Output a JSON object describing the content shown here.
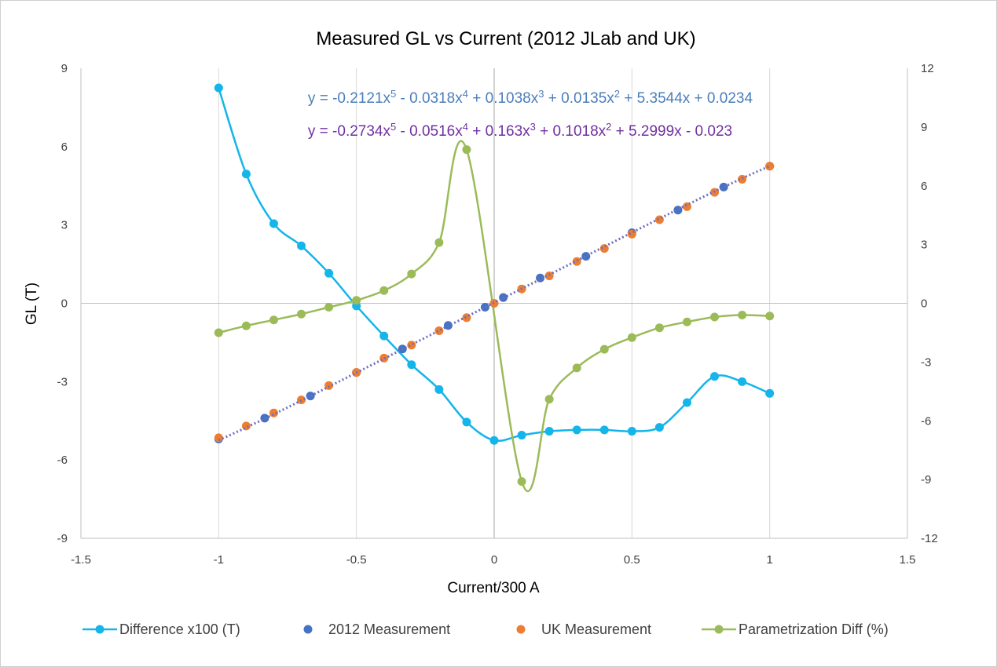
{
  "chart_data": {
    "type": "scatter",
    "title": "Measured GL vs Current (2012 JLab  and UK)",
    "xlabel": "Current/300 A",
    "ylabel": "GL (T)",
    "xlim": [
      -1.5,
      1.5
    ],
    "ylim": [
      -9,
      9
    ],
    "y2lim": [
      -12,
      12
    ],
    "xticks": [
      "-1.5",
      "-1",
      "-0.5",
      "0",
      "0.5",
      "1",
      "1.5"
    ],
    "yticks": [
      "-9",
      "-6",
      "-3",
      "0",
      "3",
      "6",
      "9"
    ],
    "y2ticks": [
      "-12",
      "-9",
      "-6",
      "-3",
      "0",
      "3",
      "6",
      "9",
      "12"
    ],
    "grid": "vertical-major",
    "legend_position": "bottom",
    "equations": [
      {
        "parts": [
          "y = -0.2121x",
          "5",
          " - 0.0318x",
          "4",
          " + 0.1038x",
          "3",
          " + 0.0135x",
          "2",
          " + 5.3544x + 0.0234"
        ],
        "color": "#4a7ebb"
      },
      {
        "parts": [
          "y = -0.2734x",
          "5",
          " - 0.0516x",
          "4",
          " + 0.163x",
          "3",
          " + 0.1018x",
          "2",
          " + 5.2999x - 0.023"
        ],
        "color": "#7030a0"
      }
    ],
    "series": [
      {
        "name": "Difference x100 (T)",
        "axis": "left",
        "style": "smooth-line-markers",
        "color": "#13b5ea",
        "x": [
          -1,
          -0.9,
          -0.8,
          -0.7,
          -0.6,
          -0.5,
          -0.4,
          -0.3,
          -0.2,
          -0.1,
          0,
          0.1,
          0.2,
          0.3,
          0.4,
          0.5,
          0.6,
          0.7,
          0.8,
          0.9,
          1
        ],
        "y": [
          8.25,
          4.95,
          3.05,
          2.2,
          1.15,
          -0.1,
          -1.25,
          -2.35,
          -3.3,
          -4.55,
          -5.25,
          -5.05,
          -4.9,
          -4.85,
          -4.85,
          -4.9,
          -4.75,
          -3.8,
          -2.8,
          -3.0,
          -3.45
        ]
      },
      {
        "name": "2012 Measurement",
        "axis": "left",
        "style": "markers",
        "color": "#4472c4",
        "x": [
          -1,
          -0.833,
          -0.667,
          -0.5,
          -0.333,
          -0.167,
          -0.033,
          0.033,
          0.167,
          0.333,
          0.5,
          0.667,
          0.833,
          1
        ],
        "y": [
          -5.2,
          -4.4,
          -3.55,
          -2.65,
          -1.75,
          -0.85,
          -0.15,
          0.22,
          0.97,
          1.8,
          2.7,
          3.57,
          4.45,
          5.25
        ]
      },
      {
        "name": "UK Measurement",
        "axis": "left",
        "style": "markers",
        "color": "#ed7d31",
        "x": [
          -1,
          -0.9,
          -0.8,
          -0.7,
          -0.6,
          -0.5,
          -0.4,
          -0.3,
          -0.2,
          -0.1,
          0,
          0.1,
          0.2,
          0.3,
          0.4,
          0.5,
          0.6,
          0.7,
          0.8,
          0.9,
          1
        ],
        "y": [
          -5.15,
          -4.7,
          -4.2,
          -3.7,
          -3.15,
          -2.65,
          -2.1,
          -1.6,
          -1.05,
          -0.55,
          0,
          0.55,
          1.05,
          1.6,
          2.1,
          2.65,
          3.2,
          3.7,
          4.25,
          4.75,
          5.25
        ]
      },
      {
        "name": "Parametrization Diff (%)",
        "axis": "right",
        "style": "smooth-line-markers",
        "color": "#9bbb59",
        "x": [
          -1,
          -0.9,
          -0.8,
          -0.7,
          -0.6,
          -0.5,
          -0.4,
          -0.3,
          -0.2,
          -0.1,
          0.1,
          0.2,
          0.3,
          0.4,
          0.5,
          0.6,
          0.7,
          0.8,
          0.9,
          1
        ],
        "y": [
          -1.5,
          -1.15,
          -0.85,
          -0.55,
          -0.2,
          0.15,
          0.65,
          1.5,
          3.1,
          7.85,
          -9.1,
          -4.9,
          -3.3,
          -2.35,
          -1.75,
          -1.25,
          -0.95,
          -0.7,
          -0.6,
          -0.65
        ]
      }
    ],
    "trendline": {
      "color": "#6e6ec0",
      "style": "dotted",
      "coefficients": [
        0.0234,
        5.3544,
        0.0135,
        0.1038,
        -0.0318,
        -0.2121
      ]
    }
  }
}
